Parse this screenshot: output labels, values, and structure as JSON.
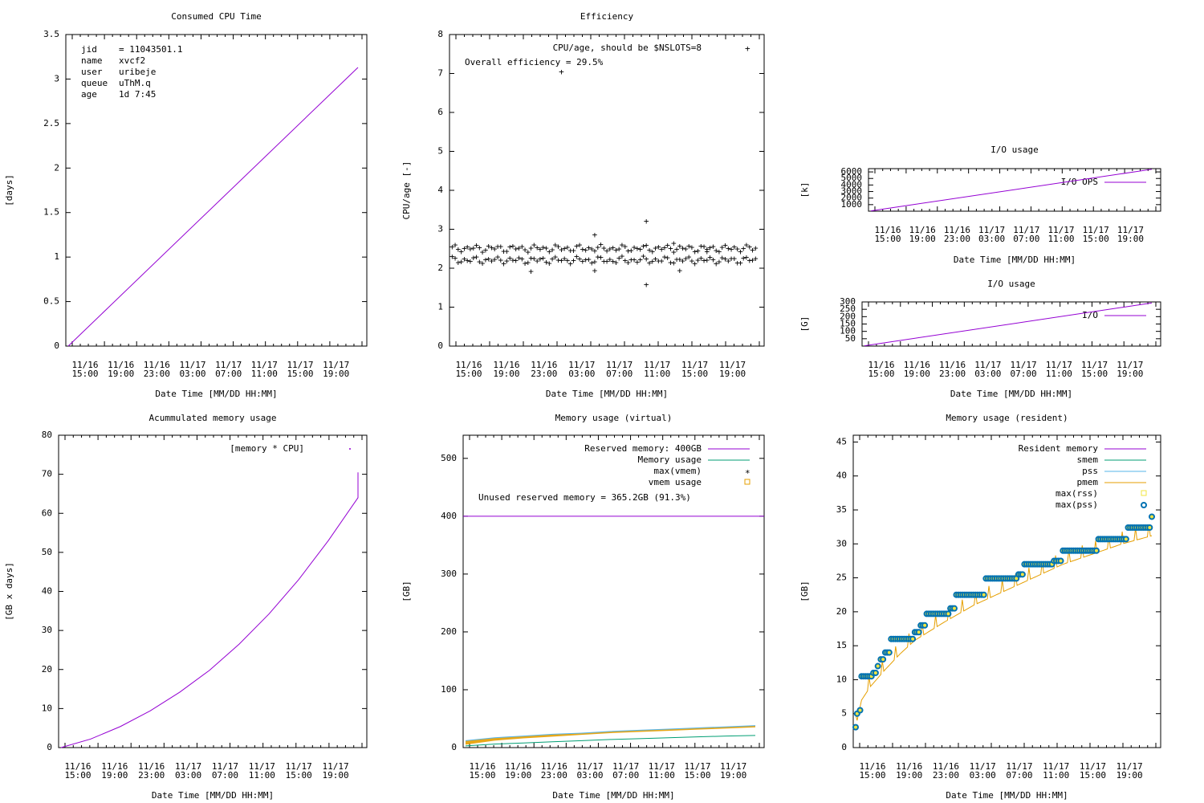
{
  "chart_data": [
    {
      "id": "cpu",
      "type": "line",
      "title": "Consumed CPU Time",
      "ylabel": "[days]",
      "xlabel": "Date Time [MM/DD HH:MM]",
      "ylim": [
        0,
        3.5
      ],
      "yticks": [
        "0",
        "0.5",
        "1",
        "1.5",
        "2",
        "2.5",
        "3",
        "3.5"
      ],
      "xticks": [
        [
          "11/16",
          "15:00"
        ],
        [
          "11/16",
          "19:00"
        ],
        [
          "11/16",
          "23:00"
        ],
        [
          "11/17",
          "03:00"
        ],
        [
          "11/17",
          "07:00"
        ],
        [
          "11/17",
          "11:00"
        ],
        [
          "11/17",
          "15:00"
        ],
        [
          "11/17",
          "19:00"
        ]
      ],
      "info": [
        [
          "jid",
          "= 11043501.1"
        ],
        [
          "name",
          "xvcf2"
        ],
        [
          "user",
          "uribeje"
        ],
        [
          "queue",
          "uThM.q"
        ],
        [
          "age",
          "1d 7:45"
        ]
      ],
      "series": [
        {
          "name": "CPU time",
          "color": "#9400d3",
          "points": [
            [
              0,
              0
            ],
            [
              1,
              3.13
            ]
          ]
        }
      ]
    },
    {
      "id": "eff",
      "type": "scatter",
      "title": "Efficiency",
      "ylabel": "CPU/age [-]",
      "xlabel": "Date Time [MM/DD HH:MM]",
      "ylim": [
        0,
        8
      ],
      "yticks": [
        "0",
        "1",
        "2",
        "3",
        "4",
        "5",
        "6",
        "7",
        "8"
      ],
      "xticks": [
        [
          "11/16",
          "15:00"
        ],
        [
          "11/16",
          "19:00"
        ],
        [
          "11/16",
          "23:00"
        ],
        [
          "11/17",
          "03:00"
        ],
        [
          "11/17",
          "07:00"
        ],
        [
          "11/17",
          "11:00"
        ],
        [
          "11/17",
          "15:00"
        ],
        [
          "11/17",
          "19:00"
        ]
      ],
      "legend": [
        {
          "label": "CPU/age, should be $NSLOTS=8",
          "color": "#9400d3",
          "marker": "plus"
        }
      ],
      "annotation": {
        "text": "Overall efficiency = 29.5%",
        "color": "#ff0000"
      },
      "bands": [
        2.52,
        2.22
      ],
      "outliers": [
        [
          0.26,
          1.93
        ],
        [
          0.36,
          7.05
        ],
        [
          0.47,
          2.87
        ],
        [
          0.47,
          1.95
        ],
        [
          0.64,
          3.22
        ],
        [
          0.64,
          1.59
        ],
        [
          0.75,
          1.95
        ],
        [
          0.73,
          2.65
        ],
        [
          0.84,
          2.43
        ]
      ]
    },
    {
      "id": "iops",
      "type": "line",
      "title": "I/O usage",
      "ylabel": "[k]",
      "xlabel": "Date Time [MM/DD HH:MM]",
      "ylim": [
        0,
        6500
      ],
      "yticks": [
        [
          "1000",
          1000
        ],
        [
          "2000",
          2000
        ],
        [
          "3000",
          3000
        ],
        [
          "4000",
          4000
        ],
        [
          "5000",
          5000
        ],
        [
          "6000",
          6000
        ]
      ],
      "xticks": [
        [
          "11/16",
          "15:00"
        ],
        [
          "11/16",
          "19:00"
        ],
        [
          "11/16",
          "23:00"
        ],
        [
          "11/17",
          "03:00"
        ],
        [
          "11/17",
          "07:00"
        ],
        [
          "11/17",
          "11:00"
        ],
        [
          "11/17",
          "15:00"
        ],
        [
          "11/17",
          "19:00"
        ]
      ],
      "legend": [
        {
          "label": "I/O OPS",
          "color": "#9400d3",
          "marker": "line"
        }
      ],
      "series": [
        {
          "name": "I/O OPS",
          "color": "#9400d3",
          "points": [
            [
              0,
              50
            ],
            [
              1,
              6400
            ]
          ]
        }
      ]
    },
    {
      "id": "io",
      "type": "line",
      "title": "I/O usage",
      "ylabel": "[G]",
      "xlabel": "Date Time [MM/DD HH:MM]",
      "ylim": [
        0,
        300
      ],
      "yticks": [
        [
          "50",
          50
        ],
        [
          "100",
          100
        ],
        [
          "150",
          150
        ],
        [
          "200",
          200
        ],
        [
          "250",
          250
        ],
        [
          "300",
          300
        ]
      ],
      "xticks": [
        [
          "11/16",
          "15:00"
        ],
        [
          "11/16",
          "19:00"
        ],
        [
          "11/16",
          "23:00"
        ],
        [
          "11/17",
          "03:00"
        ],
        [
          "11/17",
          "07:00"
        ],
        [
          "11/17",
          "11:00"
        ],
        [
          "11/17",
          "15:00"
        ],
        [
          "11/17",
          "19:00"
        ]
      ],
      "legend": [
        {
          "label": "I/O",
          "color": "#9400d3",
          "marker": "line"
        }
      ],
      "series": [
        {
          "name": "I/O",
          "color": "#9400d3",
          "points": [
            [
              0,
              2
            ],
            [
              1,
              293
            ]
          ]
        }
      ]
    },
    {
      "id": "accmem",
      "type": "line",
      "title": "Acummulated memory usage",
      "ylabel": "[GB x days]",
      "xlabel": "Date Time [MM/DD HH:MM]",
      "ylim": [
        0,
        80
      ],
      "yticks": [
        "0",
        "10",
        "20",
        "30",
        "40",
        "50",
        "60",
        "70",
        "80"
      ],
      "xticks": [
        [
          "11/16",
          "15:00"
        ],
        [
          "11/16",
          "19:00"
        ],
        [
          "11/16",
          "23:00"
        ],
        [
          "11/17",
          "03:00"
        ],
        [
          "11/17",
          "07:00"
        ],
        [
          "11/17",
          "11:00"
        ],
        [
          "11/17",
          "15:00"
        ],
        [
          "11/17",
          "19:00"
        ]
      ],
      "legend": [
        {
          "label": "[memory * CPU]",
          "color": "#9400d3",
          "marker": "dot"
        }
      ],
      "series": [
        {
          "name": "memory * CPU",
          "color": "#9400d3",
          "points": [
            [
              0,
              0
            ],
            [
              0.1,
              2.2
            ],
            [
              0.2,
              5.4
            ],
            [
              0.3,
              9.4
            ],
            [
              0.4,
              14.2
            ],
            [
              0.5,
              19.8
            ],
            [
              0.6,
              26.5
            ],
            [
              0.7,
              34.2
            ],
            [
              0.8,
              43.0
            ],
            [
              0.9,
              53.0
            ],
            [
              1.0,
              64.0
            ],
            [
              1.0,
              70.5
            ]
          ]
        }
      ]
    },
    {
      "id": "vmem",
      "type": "line",
      "title": "Memory usage (virtual)",
      "ylabel": "[GB]",
      "xlabel": "Date Time [MM/DD HH:MM]",
      "ylim": [
        0,
        540
      ],
      "yticks": [
        [
          "0",
          0
        ],
        [
          "100",
          100
        ],
        [
          "200",
          200
        ],
        [
          "300",
          300
        ],
        [
          "400",
          400
        ],
        [
          "500",
          500
        ]
      ],
      "xticks": [
        [
          "11/16",
          "15:00"
        ],
        [
          "11/16",
          "19:00"
        ],
        [
          "11/16",
          "23:00"
        ],
        [
          "11/17",
          "03:00"
        ],
        [
          "11/17",
          "07:00"
        ],
        [
          "11/17",
          "11:00"
        ],
        [
          "11/17",
          "15:00"
        ],
        [
          "11/17",
          "19:00"
        ]
      ],
      "legend": [
        {
          "label": "Reserved memory: 400GB",
          "color": "#9400d3",
          "marker": "line"
        },
        {
          "label": "Memory usage",
          "color": "#009e73",
          "marker": "line"
        },
        {
          "label": "max(vmem)",
          "color": "#56b4e9",
          "marker": "star"
        },
        {
          "label": "vmem usage",
          "color": "#e69f00",
          "marker": "square"
        }
      ],
      "annotation": {
        "text": "Unused reserved memory = 365.2GB (91.3%)",
        "color": "#ff0000"
      },
      "reserved": 400,
      "series": [
        {
          "name": "vmem usage",
          "color": "#e69f00",
          "points": [
            [
              0,
              5
            ],
            [
              0.1,
              12
            ],
            [
              0.2,
              16
            ],
            [
              0.3,
              19
            ],
            [
              0.4,
              22
            ],
            [
              0.5,
              25
            ],
            [
              0.6,
              27
            ],
            [
              0.7,
              29
            ],
            [
              0.8,
              31
            ],
            [
              0.9,
              33
            ],
            [
              1,
              35
            ]
          ]
        },
        {
          "name": "max(vmem)",
          "color": "#56b4e9",
          "points": [
            [
              0,
              12
            ],
            [
              0.1,
              17
            ],
            [
              0.2,
              20
            ],
            [
              0.3,
              23
            ],
            [
              0.4,
              25
            ],
            [
              0.5,
              28
            ],
            [
              0.6,
              30
            ],
            [
              0.7,
              32
            ],
            [
              0.8,
              34
            ],
            [
              0.9,
              36
            ],
            [
              1,
              38
            ]
          ]
        },
        {
          "name": "Memory usage",
          "color": "#009e73",
          "points": [
            [
              0,
              3
            ],
            [
              0.1,
              6
            ],
            [
              0.2,
              8
            ],
            [
              0.3,
              10
            ],
            [
              0.4,
              12
            ],
            [
              0.5,
              14
            ],
            [
              0.6,
              15.5
            ],
            [
              0.7,
              17
            ],
            [
              0.8,
              18.5
            ],
            [
              0.9,
              20
            ],
            [
              1,
              21
            ]
          ]
        }
      ]
    },
    {
      "id": "rmem",
      "type": "line",
      "title": "Memory usage (resident)",
      "ylabel": "[GB]",
      "xlabel": "Date Time [MM/DD HH:MM]",
      "ylim": [
        0,
        46
      ],
      "yticks": [
        [
          "0",
          0
        ],
        [
          "5",
          5
        ],
        [
          "10",
          10
        ],
        [
          "15",
          15
        ],
        [
          "20",
          20
        ],
        [
          "25",
          25
        ],
        [
          "30",
          30
        ],
        [
          "35",
          35
        ],
        [
          "40",
          40
        ],
        [
          "45",
          45
        ]
      ],
      "xticks": [
        [
          "11/16",
          "15:00"
        ],
        [
          "11/16",
          "19:00"
        ],
        [
          "11/16",
          "23:00"
        ],
        [
          "11/17",
          "03:00"
        ],
        [
          "11/17",
          "07:00"
        ],
        [
          "11/17",
          "11:00"
        ],
        [
          "11/17",
          "15:00"
        ],
        [
          "11/17",
          "19:00"
        ]
      ],
      "legend": [
        {
          "label": "Resident memory",
          "color": "#9400d3",
          "marker": "line"
        },
        {
          "label": "smem",
          "color": "#009e73",
          "marker": "line"
        },
        {
          "label": "pss",
          "color": "#56b4e9",
          "marker": "line"
        },
        {
          "label": "pmem",
          "color": "#e69f00",
          "marker": "line"
        },
        {
          "label": "max(rss)",
          "color": "#f0e442",
          "marker": "square"
        },
        {
          "label": "max(pss)",
          "color": "#0072b2",
          "marker": "circle"
        }
      ],
      "pmem": [
        [
          0,
          3
        ],
        [
          0.02,
          7
        ],
        [
          0.05,
          9
        ],
        [
          0.1,
          11.5
        ],
        [
          0.15,
          13.8
        ],
        [
          0.2,
          15.8
        ],
        [
          0.3,
          18.5
        ],
        [
          0.4,
          21
        ],
        [
          0.5,
          23
        ],
        [
          0.6,
          25
        ],
        [
          0.7,
          27
        ],
        [
          0.8,
          28.5
        ],
        [
          0.9,
          30
        ],
        [
          1,
          31.2
        ]
      ],
      "steps": [
        [
          0,
          3
        ],
        [
          0.005,
          5
        ],
        [
          0.015,
          5.5
        ],
        [
          0.02,
          10.5
        ],
        [
          0.06,
          11
        ],
        [
          0.075,
          12
        ],
        [
          0.085,
          13
        ],
        [
          0.1,
          14
        ],
        [
          0.12,
          16
        ],
        [
          0.2,
          17
        ],
        [
          0.22,
          18
        ],
        [
          0.24,
          19.7
        ],
        [
          0.32,
          20.5
        ],
        [
          0.34,
          22.5
        ],
        [
          0.44,
          24.9
        ],
        [
          0.55,
          25.5
        ],
        [
          0.57,
          27
        ],
        [
          0.67,
          27.5
        ],
        [
          0.7,
          29
        ],
        [
          0.82,
          30.7
        ],
        [
          0.92,
          32.4
        ],
        [
          1.0,
          34
        ]
      ]
    }
  ]
}
